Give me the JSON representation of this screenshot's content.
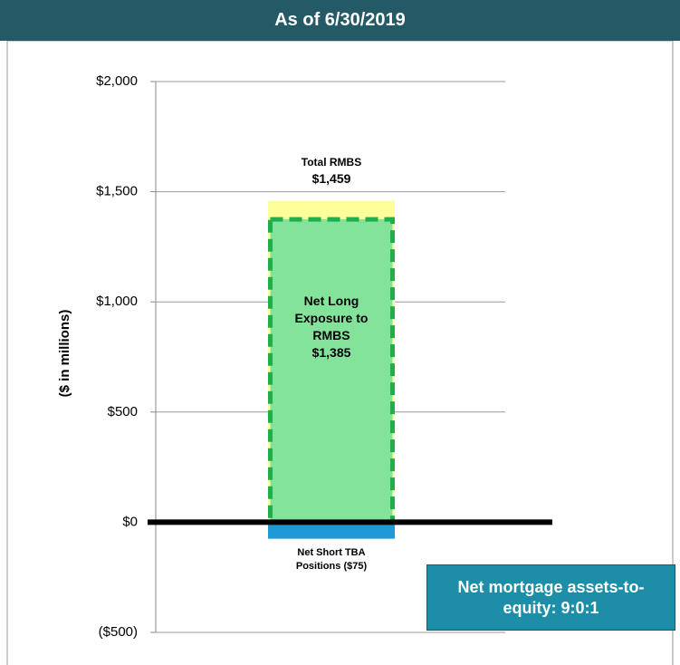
{
  "chart_data": {
    "type": "bar",
    "title": "As of 6/30/2019",
    "y_label": "($ in millions)",
    "ylim": [
      -500,
      2000
    ],
    "yticks": [
      {
        "value": -500,
        "label": "($500)"
      },
      {
        "value": 0,
        "label": "$0"
      },
      {
        "value": 500,
        "label": "$500"
      },
      {
        "value": 1000,
        "label": "$1,000"
      },
      {
        "value": 1500,
        "label": "$1,500"
      },
      {
        "value": 2000,
        "label": "$2,000"
      }
    ],
    "grid": true,
    "series": [
      {
        "name": "Total RMBS",
        "color": "#ffff99",
        "values": [
          1459
        ],
        "value_labels": [
          "$1,459"
        ]
      },
      {
        "name": "Net Long Exposure to RMBS",
        "color": "#84e39a",
        "edge_color": "#1fae4b",
        "dashed": true,
        "values": [
          1385
        ],
        "value_labels": [
          "$1,385"
        ]
      },
      {
        "name": "Net Short TBA Positions",
        "color": "#1e9bd7",
        "values": [
          -75
        ],
        "value_labels": [
          "($75)"
        ]
      }
    ],
    "annotation": "Net mortgage assets-to-equity: 9:0:1"
  }
}
